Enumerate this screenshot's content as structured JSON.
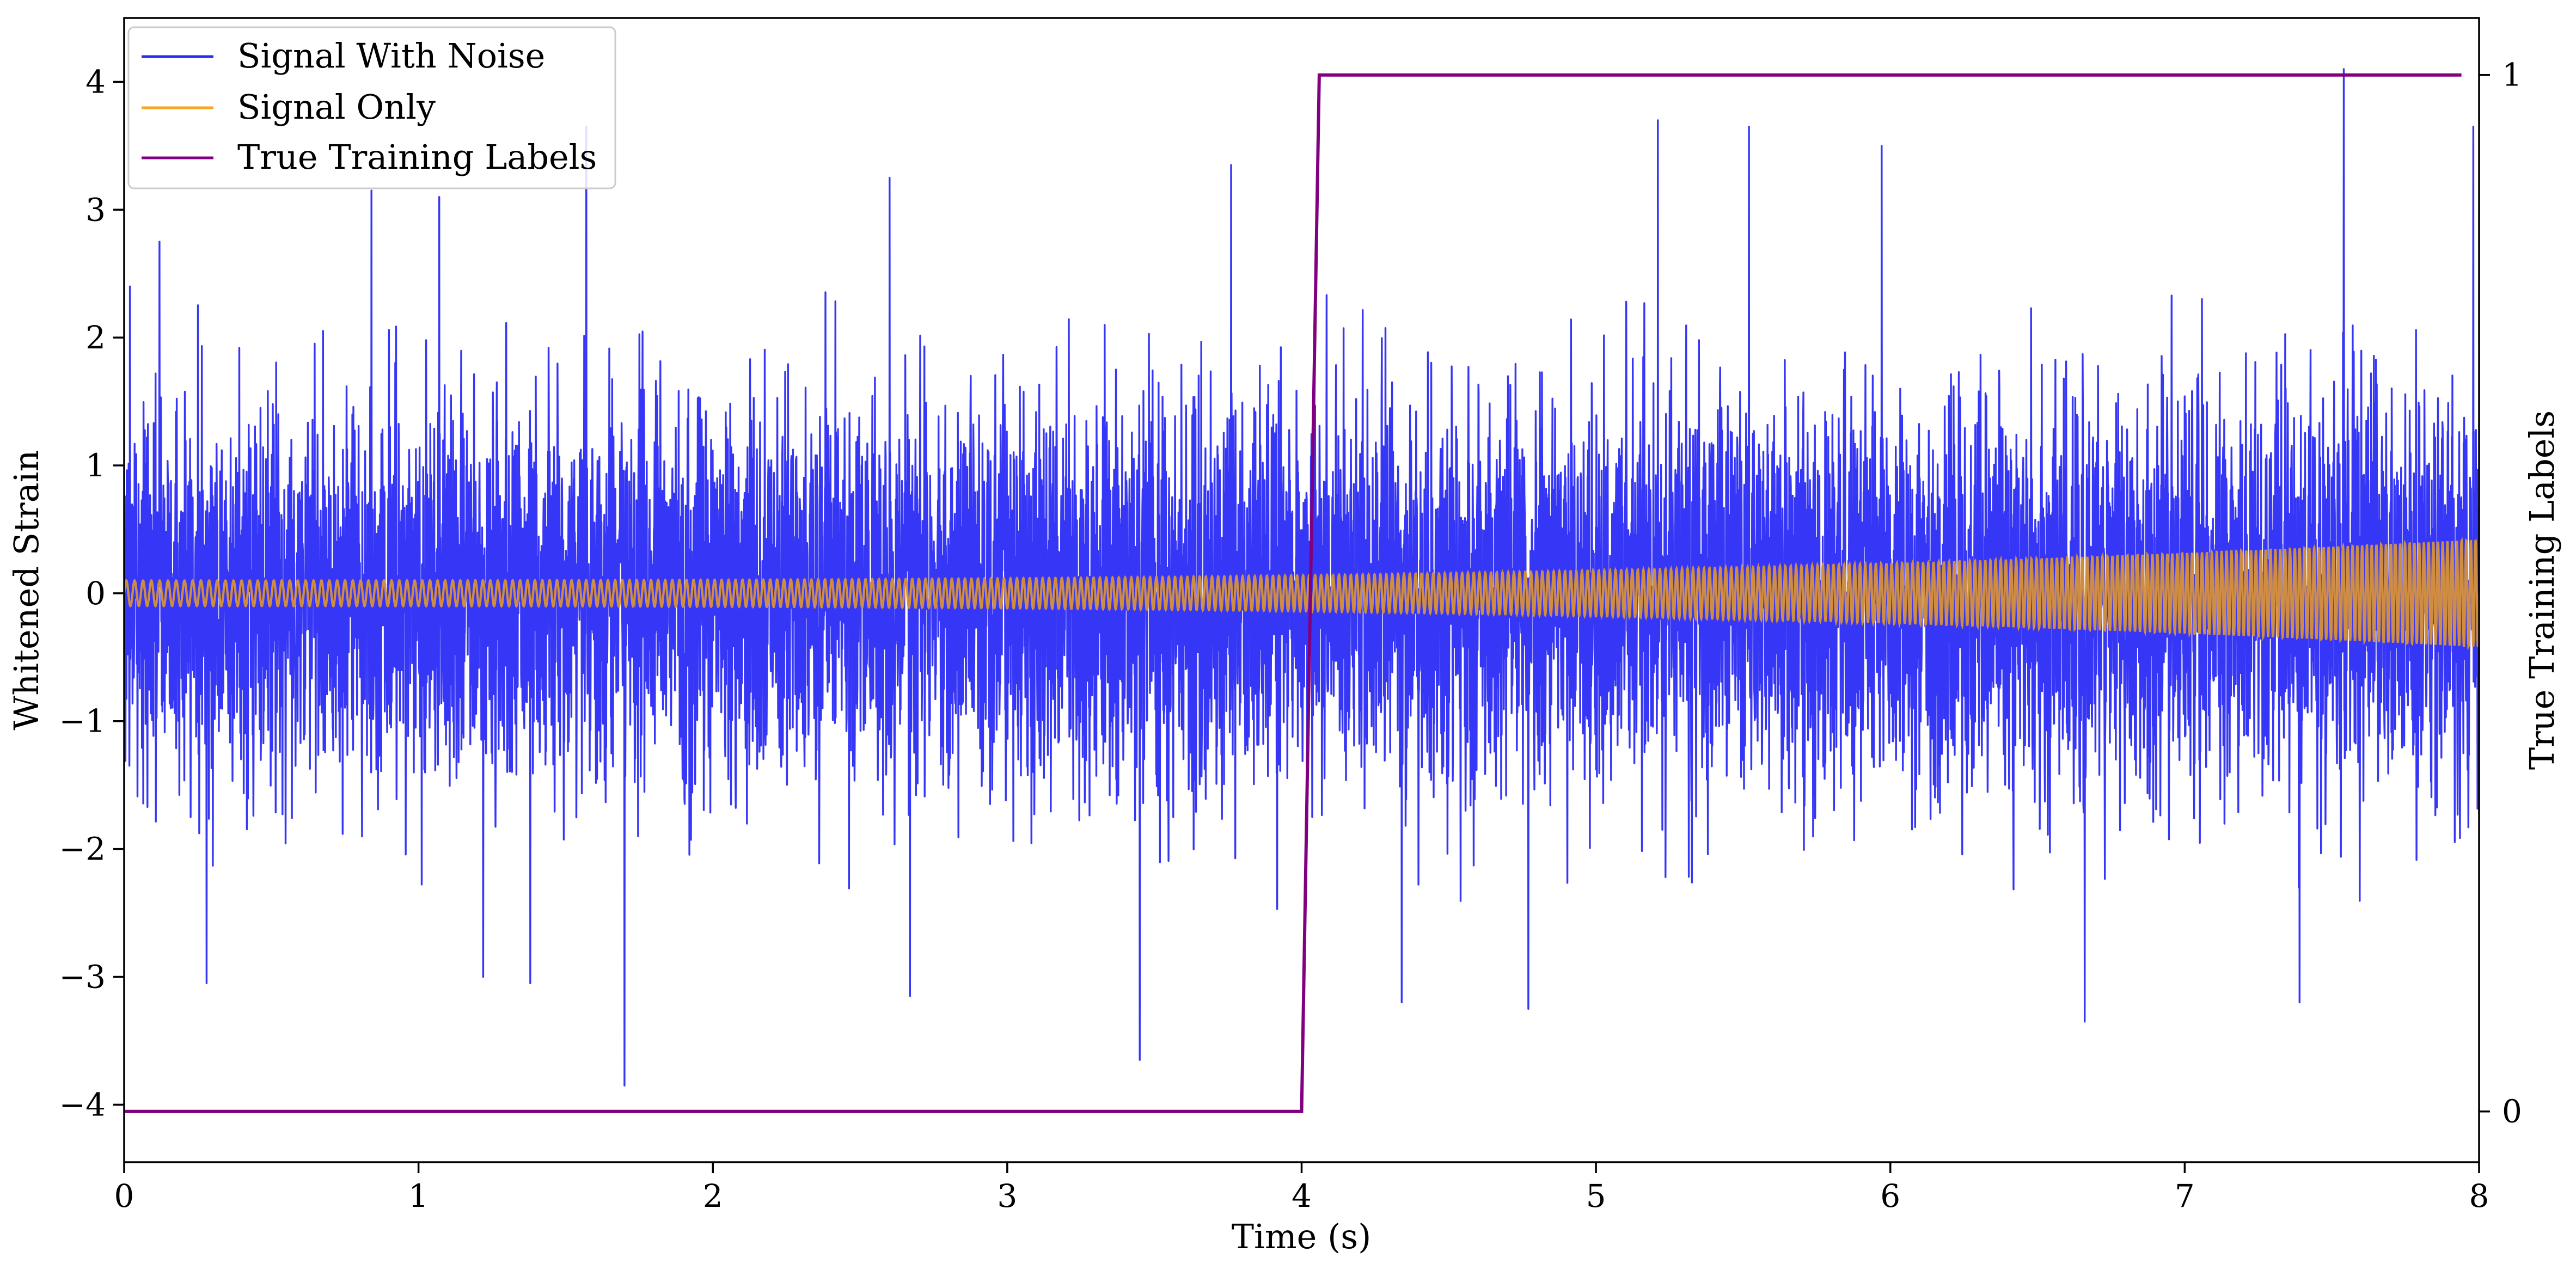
{
  "chart_data": {
    "type": "line",
    "title": "",
    "xlabel": "Time (s)",
    "ylabel": "Whitened Strain",
    "y2label": "True Training Labels",
    "xlim": [
      0,
      8
    ],
    "ylim": [
      -4.45,
      4.5
    ],
    "y2lim": [
      -0.049,
      1.055
    ],
    "xticks": [
      0,
      1,
      2,
      3,
      4,
      5,
      6,
      7,
      8
    ],
    "xtick_labels": [
      "0",
      "1",
      "2",
      "3",
      "4",
      "5",
      "6",
      "7",
      "8"
    ],
    "yticks": [
      -4,
      -3,
      -2,
      -1,
      0,
      1,
      2,
      3,
      4
    ],
    "ytick_labels": [
      "−4",
      "−3",
      "−2",
      "−1",
      "0",
      "1",
      "2",
      "3",
      "4"
    ],
    "y2ticks": [
      0,
      1
    ],
    "y2tick_labels": [
      "0",
      "1"
    ],
    "grid": false,
    "legend_position": "top-left",
    "legend": [
      {
        "label": "Signal With Noise",
        "color": "#2b2bf5"
      },
      {
        "label": "Signal Only",
        "color": "#f5a623"
      },
      {
        "label": "True Training Labels",
        "color": "#800080"
      }
    ],
    "series": [
      {
        "name": "Signal With Noise",
        "axis": "left",
        "color": "#2b2bf5",
        "description_values": {
          "x_start": 0,
          "x_end": 8,
          "typical_range": [
            -1.9,
            1.9
          ],
          "peaks": [
            {
              "x": 0.02,
              "y": 2.4
            },
            {
              "x": 0.12,
              "y": 2.75
            },
            {
              "x": 0.28,
              "y": -3.05
            },
            {
              "x": 0.84,
              "y": 3.15
            },
            {
              "x": 1.07,
              "y": 3.1
            },
            {
              "x": 1.22,
              "y": -3.0
            },
            {
              "x": 1.38,
              "y": -3.05
            },
            {
              "x": 1.57,
              "y": 3.65
            },
            {
              "x": 1.7,
              "y": -3.85
            },
            {
              "x": 2.6,
              "y": 3.25
            },
            {
              "x": 2.67,
              "y": -3.15
            },
            {
              "x": 3.45,
              "y": -3.65
            },
            {
              "x": 3.76,
              "y": 3.35
            },
            {
              "x": 4.34,
              "y": -3.2
            },
            {
              "x": 4.77,
              "y": -3.25
            },
            {
              "x": 5.21,
              "y": 3.7
            },
            {
              "x": 5.52,
              "y": 3.65
            },
            {
              "x": 5.97,
              "y": 3.5
            },
            {
              "x": 6.66,
              "y": -3.35
            },
            {
              "x": 7.39,
              "y": -3.2
            },
            {
              "x": 7.54,
              "y": 4.1
            },
            {
              "x": 7.98,
              "y": 3.65
            }
          ]
        }
      },
      {
        "name": "Signal Only",
        "axis": "left",
        "color": "#f5a623",
        "description_values": {
          "kind": "chirp",
          "amplitude_start": 0.1,
          "amplitude_end": 0.42,
          "frequency_start_hz": 35,
          "frequency_end_hz": 63
        }
      },
      {
        "name": "True Training Labels",
        "axis": "right",
        "color": "#800080",
        "x": [
          0,
          4.0,
          4.06,
          7.94
        ],
        "values": [
          0,
          0,
          1,
          1
        ]
      }
    ]
  }
}
